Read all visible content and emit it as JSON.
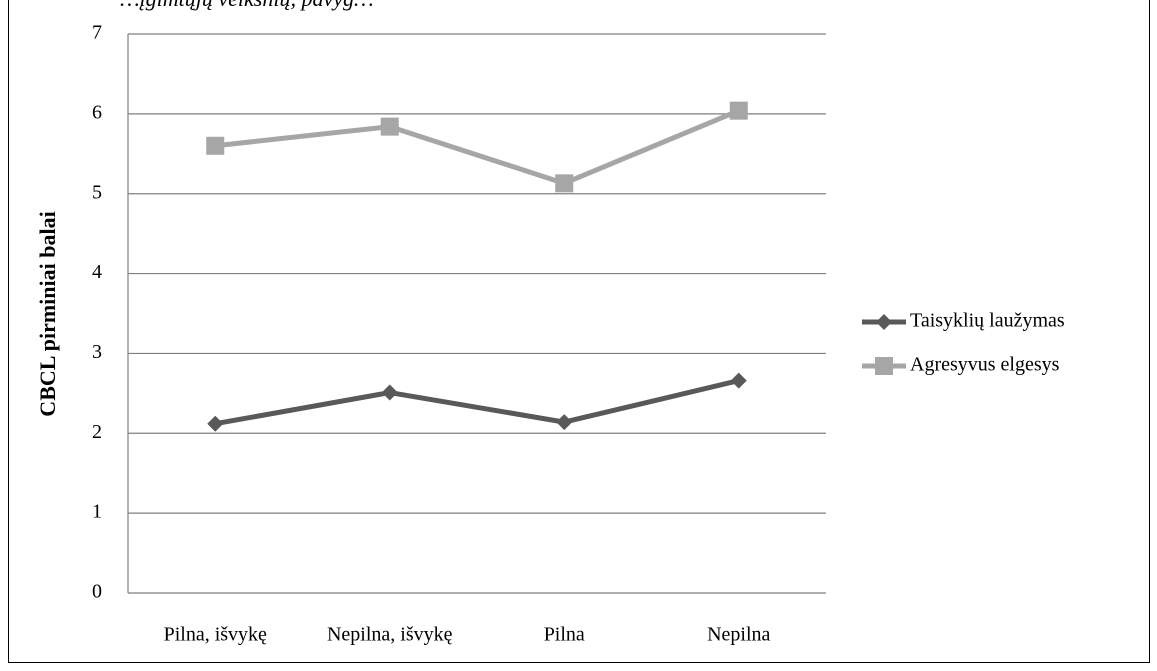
{
  "top_caption": "…įgimtųjų veiksnių, pavyg…",
  "chart_data": {
    "type": "line",
    "title": "",
    "xlabel": "",
    "ylabel": "CBCL pirminiai balai",
    "ylim": [
      0,
      7
    ],
    "yticks": [
      0,
      1,
      2,
      3,
      4,
      5,
      6,
      7
    ],
    "grid": true,
    "legend_position": "right",
    "categories": [
      "Pilna, išvykę",
      "Nepilna, išvykę",
      "Pilna",
      "Nepilna"
    ],
    "series": [
      {
        "name": "Taisyklių laužymas",
        "values": [
          2.12,
          2.51,
          2.14,
          2.66
        ],
        "color": "#595959",
        "marker": "diamond"
      },
      {
        "name": "Agresyvus elgesys",
        "values": [
          5.6,
          5.84,
          5.13,
          6.04
        ],
        "color": "#a6a6a6",
        "marker": "square"
      }
    ]
  }
}
